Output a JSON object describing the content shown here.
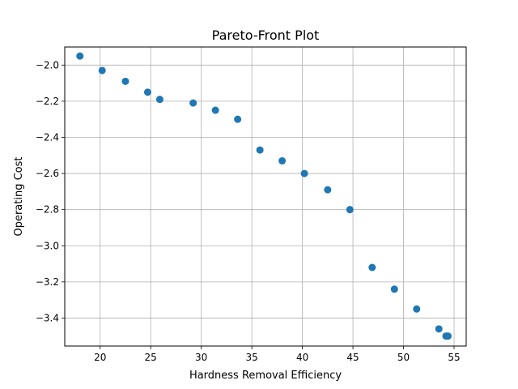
{
  "chart_data": {
    "type": "scatter",
    "title": "Pareto-Front Plot",
    "xlabel": "Hardness Removal Efficiency",
    "ylabel": "Operating Cost",
    "xlim": [
      16.5,
      56.2
    ],
    "ylim": [
      -3.555,
      -1.9
    ],
    "xticks": [
      20,
      25,
      30,
      35,
      40,
      45,
      50,
      55
    ],
    "xtick_labels": [
      "20",
      "25",
      "30",
      "35",
      "40",
      "45",
      "50",
      "55"
    ],
    "yticks": [
      -2.0,
      -2.2,
      -2.4,
      -2.6,
      -2.8,
      -3.0,
      -3.2,
      -3.4
    ],
    "ytick_labels": [
      "−2.0",
      "−2.2",
      "−2.4",
      "−2.6",
      "−2.8",
      "−3.0",
      "−3.2",
      "−3.4"
    ],
    "grid": true,
    "marker_color": "#1f77b4",
    "points": [
      {
        "x": 18.0,
        "y": -1.95
      },
      {
        "x": 20.2,
        "y": -2.03
      },
      {
        "x": 22.5,
        "y": -2.09
      },
      {
        "x": 24.7,
        "y": -2.15
      },
      {
        "x": 25.9,
        "y": -2.19
      },
      {
        "x": 29.2,
        "y": -2.21
      },
      {
        "x": 31.4,
        "y": -2.25
      },
      {
        "x": 33.6,
        "y": -2.3
      },
      {
        "x": 35.8,
        "y": -2.47
      },
      {
        "x": 38.0,
        "y": -2.53
      },
      {
        "x": 40.2,
        "y": -2.6
      },
      {
        "x": 42.5,
        "y": -2.69
      },
      {
        "x": 44.7,
        "y": -2.8
      },
      {
        "x": 46.9,
        "y": -3.12
      },
      {
        "x": 49.1,
        "y": -3.24
      },
      {
        "x": 51.3,
        "y": -3.35
      },
      {
        "x": 53.5,
        "y": -3.46
      },
      {
        "x": 54.2,
        "y": -3.5
      },
      {
        "x": 54.3,
        "y": -3.5
      },
      {
        "x": 54.4,
        "y": -3.5
      }
    ]
  }
}
